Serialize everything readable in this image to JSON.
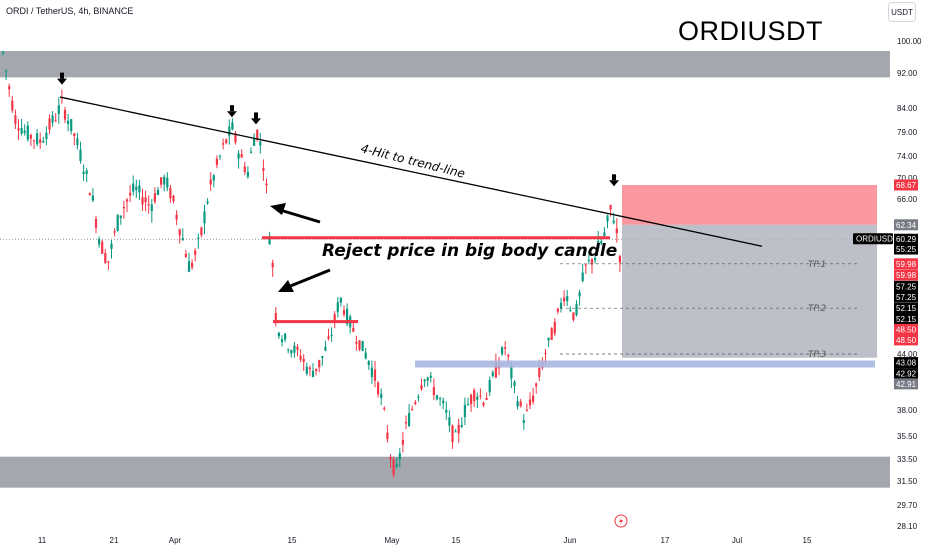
{
  "header": {
    "symbol_line": "ORDI / TetherUS, 4h, BINANCE",
    "currency_button": "USDT"
  },
  "chart_title": "ORDIUSDT",
  "colors": {
    "up": "#089981",
    "down": "#f23645",
    "zone": "#9598a1",
    "stop": "#f7525f",
    "target": "#b2b5be",
    "support": "#a9b7e0",
    "resist": "#f23645"
  },
  "chart_data": {
    "type": "candlestick",
    "title": "ORDIUSDT",
    "ylim": [
      27.5,
      103
    ],
    "y_ticks": [
      "100.00",
      "92.00",
      "84.00",
      "79.00",
      "74.00",
      "70.00",
      "66.00",
      "62.34",
      "60.29",
      "55:25",
      "59.98",
      "59.98",
      "57.25",
      "57.25",
      "52.15",
      "52.15",
      "48.50",
      "48.50",
      "44.00",
      "43.08",
      "42.92",
      "42.91",
      "38.00",
      "35.50",
      "33.50",
      "31.50",
      "29.70",
      "28.10"
    ],
    "x_ticks": [
      "11",
      "21",
      "Apr",
      "15",
      "May",
      "15",
      "Jun",
      "17",
      "Jul",
      "15"
    ],
    "price_tags": [
      {
        "label": "68.67",
        "value": 68.67,
        "color": "#f23645"
      },
      {
        "label": "62.34",
        "value": 62.34,
        "color": "#787b86"
      },
      {
        "label": "ORDIUSDT",
        "value": 60.29,
        "color": "#000000",
        "wide": true
      },
      {
        "label": "60.29",
        "value": 60.29,
        "color": "#000000"
      },
      {
        "label": "55:25",
        "value": 58.9,
        "color": "#000000"
      },
      {
        "label": "59.98",
        "value": 56.8,
        "color": "#f23645"
      },
      {
        "label": "59.98",
        "value": 55.2,
        "color": "#f23645"
      },
      {
        "label": "57.25",
        "value": 53.6,
        "color": "#000000"
      },
      {
        "label": "57.25",
        "value": 52.1,
        "color": "#000000"
      },
      {
        "label": "52.15",
        "value": 50.5,
        "color": "#000000"
      },
      {
        "label": "52.15",
        "value": 49.0,
        "color": "#000000"
      },
      {
        "label": "48.50",
        "value": 47.5,
        "color": "#f23645"
      },
      {
        "label": "48.50",
        "value": 46.0,
        "color": "#f23645"
      },
      {
        "label": "43.08",
        "value": 43.08,
        "color": "#000000"
      },
      {
        "label": "42.92",
        "value": 41.9,
        "color": "#000000"
      },
      {
        "label": "42.91",
        "value": 40.8,
        "color": "#787b86"
      }
    ],
    "annotations": {
      "trend_text": "4-Hit to trend-line",
      "reject_text": "Reject price in big body candle",
      "tp1": "TP.1",
      "tp2": "TP.2",
      "tp3": "TP.3"
    },
    "zones": [
      {
        "name": "resistance",
        "from": 91,
        "to": 97.5
      },
      {
        "name": "support",
        "from": 31,
        "to": 33.7
      }
    ]
  }
}
